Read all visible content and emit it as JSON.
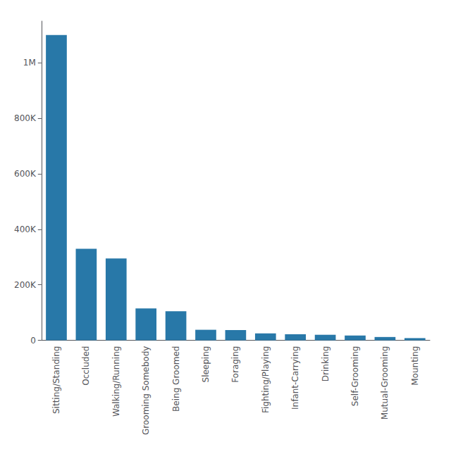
{
  "chart_data": {
    "type": "bar",
    "categories": [
      "Sitting/Standing",
      "Occluded",
      "Walking/Running",
      "Grooming Somebody",
      "Being Groomed",
      "Sleeping",
      "Foraging",
      "Fighting/Playing",
      "Infant-Carrying",
      "Drinking",
      "Self-Grooming",
      "Mutual-Grooming",
      "Mounting"
    ],
    "values": [
      1100000,
      330000,
      295000,
      115000,
      105000,
      38000,
      37000,
      25000,
      22000,
      20000,
      17000,
      12000,
      8000
    ],
    "color": "#2878a8",
    "ylim": [
      0,
      1150000
    ],
    "yticks": [
      0,
      {
        "value": 200000,
        "label": "200K"
      },
      {
        "value": 400000,
        "label": "400K"
      },
      {
        "value": 600000,
        "label": "600K"
      },
      {
        "value": 800000,
        "label": "800K"
      },
      {
        "value": 1000000,
        "label": "1M"
      }
    ],
    "grid": false
  }
}
